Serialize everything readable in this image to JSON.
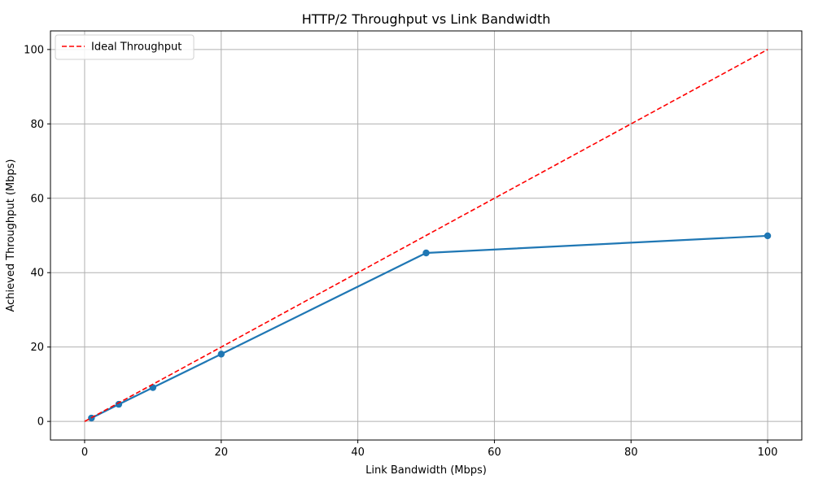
{
  "chart_data": {
    "type": "line",
    "title": "HTTP/2 Throughput vs Link Bandwidth",
    "xlabel": "Link Bandwidth (Mbps)",
    "ylabel": "Achieved Throughput (Mbps)",
    "xlim": [
      -5,
      105
    ],
    "ylim": [
      -5,
      105
    ],
    "xticks": [
      0,
      20,
      40,
      60,
      80,
      100
    ],
    "yticks": [
      0,
      20,
      40,
      60,
      80,
      100
    ],
    "grid": true,
    "legend_position": "upper-left",
    "series": [
      {
        "name": "",
        "color": "#1f77b4",
        "style": "solid",
        "markers": true,
        "x": [
          1,
          5,
          10,
          20,
          50,
          100
        ],
        "y": [
          0.9,
          4.6,
          9.1,
          18.1,
          45.3,
          49.9
        ]
      },
      {
        "name": "Ideal Throughput",
        "color": "#ff0000",
        "style": "dashed",
        "markers": false,
        "x": [
          0,
          100
        ],
        "y": [
          0,
          100
        ]
      }
    ]
  }
}
